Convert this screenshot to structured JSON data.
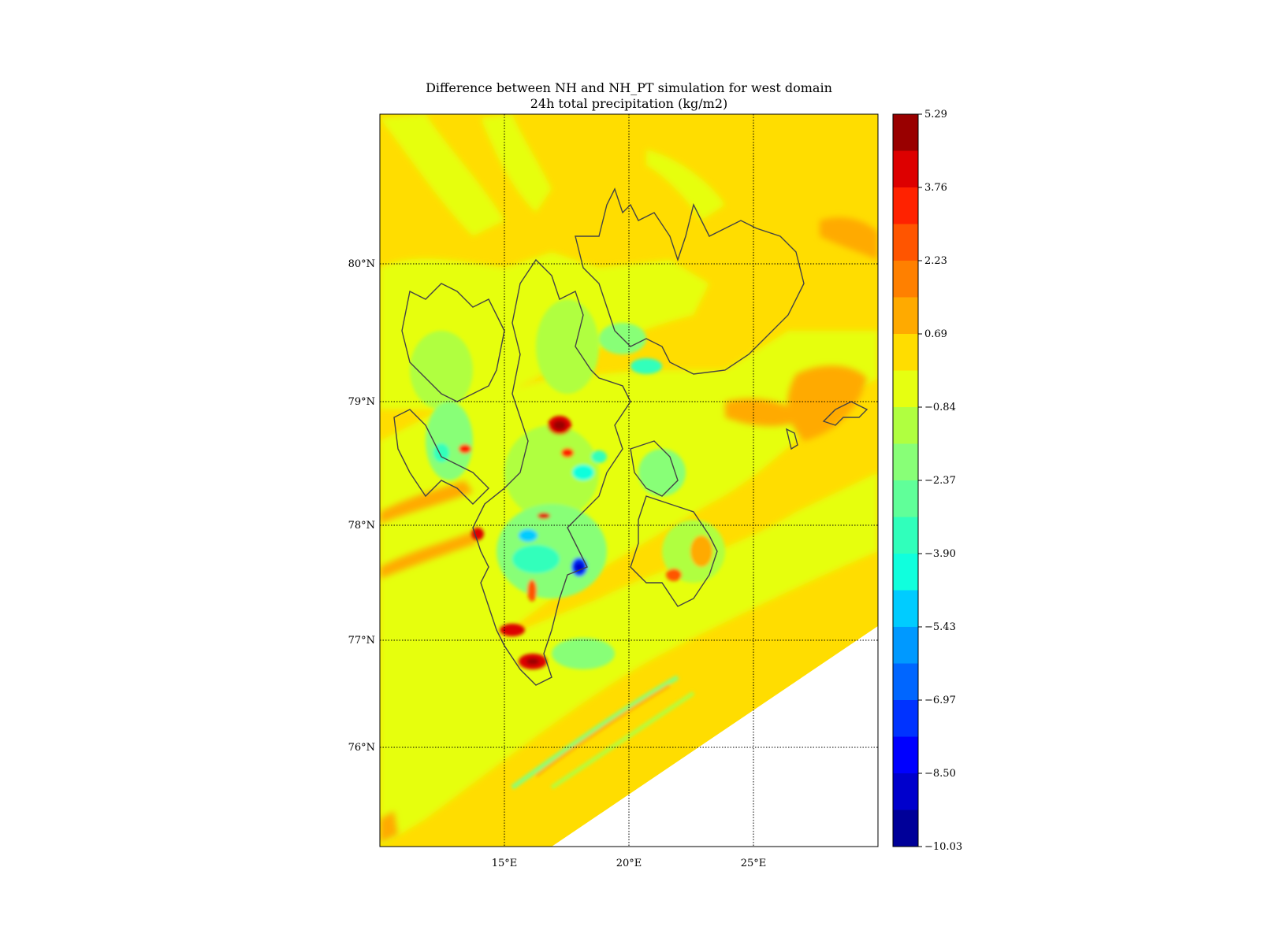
{
  "chart_data": {
    "type": "heatmap",
    "title": "Difference between NH and NH_PT simulation for west domain",
    "subtitle": "24h total precipitation (kg/m2)",
    "xlabel": "",
    "ylabel": "",
    "x_ticks": [
      {
        "value": 15,
        "label": "15°E"
      },
      {
        "value": 20,
        "label": "20°E"
      },
      {
        "value": 25,
        "label": "25°E"
      }
    ],
    "y_ticks": [
      {
        "value": 80,
        "label": "80°N"
      },
      {
        "value": 79,
        "label": "79°N"
      },
      {
        "value": 78,
        "label": "78°N"
      },
      {
        "value": 77,
        "label": "77°N"
      },
      {
        "value": 76,
        "label": "76°N"
      }
    ],
    "grid": "dotted",
    "colorbar": {
      "range": [
        -10.03,
        5.29
      ],
      "tick_labels": [
        "5.29",
        "3.76",
        "2.23",
        "0.69",
        "−0.84",
        "−2.37",
        "−3.90",
        "−5.43",
        "−6.97",
        "−8.50",
        "−10.03"
      ],
      "levels_top_to_bottom": [
        "#990000",
        "#dd0000",
        "#ff2200",
        "#ff5500",
        "#ff8000",
        "#ffaa00",
        "#ffdd00",
        "#e6ff11",
        "#b0ff40",
        "#88ff77",
        "#60ff99",
        "#30ffbb",
        "#10ffdd",
        "#00ccff",
        "#0099ff",
        "#0066ff",
        "#0033ff",
        "#0000ff",
        "#0000cc",
        "#000099"
      ]
    },
    "field": {
      "background_level": "#ffdd00",
      "common_levels": [
        "#e6ff11",
        "#b0ff40",
        "#ffaa00"
      ],
      "note_visible": "highest positive differences near 17°E 78.8°N and 14.5°E 77°N; strongest negative difference near 18°E 77.6°N"
    }
  }
}
